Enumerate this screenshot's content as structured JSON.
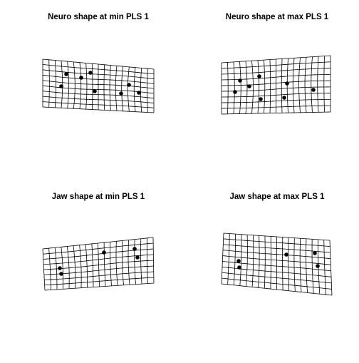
{
  "panels": [
    {
      "id": "neuro-min",
      "title": "Neuro shape at min PLS 1"
    },
    {
      "id": "neuro-max",
      "title": "Neuro shape at max PLS 1"
    },
    {
      "id": "jaw-min",
      "title": "Jaw shape at min PLS 1"
    },
    {
      "id": "jaw-max",
      "title": "Jaw shape at max PLS 1"
    }
  ],
  "style": {
    "line_color": "#000000",
    "background": "#ffffff"
  }
}
